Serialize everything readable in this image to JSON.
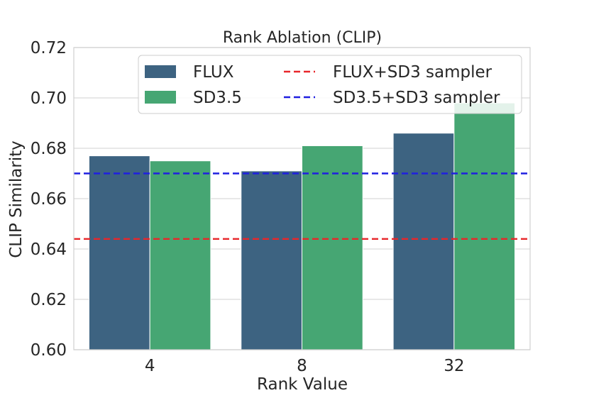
{
  "chart_data": {
    "type": "bar",
    "title": "Rank Ablation (CLIP)",
    "xlabel": "Rank Value",
    "ylabel": "CLIP Similarity",
    "categories": [
      "4",
      "8",
      "32"
    ],
    "series": [
      {
        "name": "FLUX",
        "values": [
          0.677,
          0.671,
          0.686
        ],
        "color": "#3d6381"
      },
      {
        "name": "SD3.5",
        "values": [
          0.675,
          0.681,
          0.698
        ],
        "color": "#46a673"
      }
    ],
    "reference_lines": [
      {
        "name": "FLUX+SD3 sampler",
        "value": 0.644,
        "color": "#e8262a",
        "style": "dashed"
      },
      {
        "name": "SD3.5+SD3 sampler",
        "value": 0.67,
        "color": "#1f1fe0",
        "style": "dashed"
      }
    ],
    "ylim": [
      0.6,
      0.72
    ],
    "yticks": [
      "0.60",
      "0.62",
      "0.64",
      "0.66",
      "0.68",
      "0.70",
      "0.72"
    ],
    "grid": true,
    "legend_position": "top-right"
  }
}
